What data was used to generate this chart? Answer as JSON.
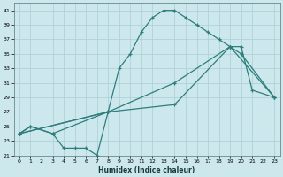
{
  "xlabel": "Humidex (Indice chaleur)",
  "bg_color": "#cce8ec",
  "grid_color": "#aacdd4",
  "line_color": "#2e7d7d",
  "xlim": [
    -0.5,
    23.5
  ],
  "ylim": [
    21,
    42
  ],
  "yticks": [
    21,
    23,
    25,
    27,
    29,
    31,
    33,
    35,
    37,
    39,
    41
  ],
  "xticks": [
    0,
    1,
    2,
    3,
    4,
    5,
    6,
    7,
    8,
    9,
    10,
    11,
    12,
    13,
    14,
    15,
    16,
    17,
    18,
    19,
    20,
    21,
    22,
    23
  ],
  "line1_x": [
    0,
    1,
    3,
    8,
    9,
    10,
    11,
    12,
    13,
    14,
    15,
    16,
    17,
    18,
    19,
    20,
    21,
    23
  ],
  "line1_y": [
    24,
    25,
    24,
    27,
    33,
    35,
    38,
    40,
    41,
    41,
    40,
    39,
    38,
    37,
    36,
    36,
    30,
    29
  ],
  "line2_x": [
    0,
    1,
    3,
    4,
    5,
    6,
    7,
    8
  ],
  "line2_y": [
    24,
    25,
    24,
    22,
    22,
    22,
    21,
    27
  ],
  "line3_x": [
    0,
    8,
    14,
    19,
    20,
    23
  ],
  "line3_y": [
    24,
    27,
    31,
    36,
    35,
    29
  ],
  "line4_x": [
    0,
    8,
    14,
    19,
    23
  ],
  "line4_y": [
    24,
    27,
    28,
    36,
    29
  ]
}
